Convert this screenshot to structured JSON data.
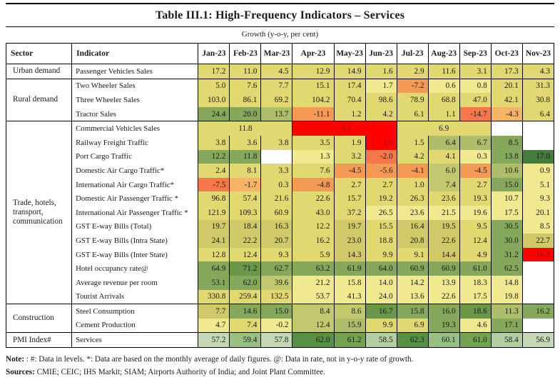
{
  "title": "Table III.1: High-Frequency Indicators – Services",
  "subtitle": "Growth (y-o-y, per cent)",
  "columns": [
    "Sector",
    "Indicator",
    "Jan-23",
    "Feb-23",
    "Mar-23",
    "Apr-23",
    "May-23",
    "Jun-23",
    "Jul-23",
    "Aug-23",
    "Sep-23",
    "Oct-23",
    "Nov-23"
  ],
  "palette": {
    "R": "#fe0100",
    "O3": "#f4784a",
    "O2": "#f59a55",
    "O1": "#f6b466",
    "Y0": "#f0e98f",
    "Y1": "#e2d871",
    "Y2": "#cfc96a",
    "YG": "#c2c86f",
    "G1": "#adbd69",
    "G2": "#85a85c",
    "G2d": "#6b9749",
    "G3": "#447c3c",
    "P0": "#c5d9b6",
    "P1": "#b3cfa2",
    "P2": "#98c083",
    "P3": "#74a152",
    "P4": "#569044",
    "W": "#ffffff",
    "border": "#000000",
    "value_text": "#1a1a1a",
    "text_on_red": "#9c0006"
  },
  "groups": [
    {
      "sector": "Urban demand",
      "rows": [
        {
          "indicator": "Passenger Vehicles Sales",
          "cells": [
            [
              "17.2",
              "Y1"
            ],
            [
              "11.0",
              "Y1"
            ],
            [
              "4.5",
              "Y1"
            ],
            [
              "12.9",
              "Y1"
            ],
            [
              "14.9",
              "Y1"
            ],
            [
              "1.6",
              "Y1"
            ],
            [
              "2.9",
              "Y1"
            ],
            [
              "11.6",
              "Y1"
            ],
            [
              "3.1",
              "Y1"
            ],
            [
              "17.3",
              "Y1"
            ],
            [
              "4.3",
              "Y1"
            ]
          ]
        }
      ]
    },
    {
      "sector": "Rural demand",
      "rows": [
        {
          "indicator": "Two Wheeler Sales",
          "cells": [
            [
              "5.0",
              "Y1"
            ],
            [
              "7.6",
              "Y1"
            ],
            [
              "7.7",
              "Y1"
            ],
            [
              "15.1",
              "Y1"
            ],
            [
              "17.4",
              "Y1"
            ],
            [
              "1.7",
              "Y0"
            ],
            [
              "-7.2",
              "O2"
            ],
            [
              "0.6",
              "Y0"
            ],
            [
              "0.8",
              "Y0"
            ],
            [
              "20.1",
              "Y1"
            ],
            [
              "31.3",
              "Y1"
            ]
          ]
        },
        {
          "indicator": "Three Wheeler Sales",
          "cells": [
            [
              "103.0",
              "Y1"
            ],
            [
              "86.1",
              "Y1"
            ],
            [
              "69.2",
              "Y1"
            ],
            [
              "104.2",
              "Y1"
            ],
            [
              "70.4",
              "Y1"
            ],
            [
              "98.6",
              "Y1"
            ],
            [
              "78.9",
              "Y1"
            ],
            [
              "68.8",
              "Y1"
            ],
            [
              "47.0",
              "Y1"
            ],
            [
              "42.1",
              "Y1"
            ],
            [
              "30.8",
              "Y1"
            ]
          ]
        },
        {
          "indicator": "Tractor Sales",
          "cells": [
            [
              "24.4",
              "G2"
            ],
            [
              "20.0",
              "G2"
            ],
            [
              "13.7",
              "G1"
            ],
            [
              "-11.1",
              "O2"
            ],
            [
              "1.2",
              "Y1"
            ],
            [
              "4.2",
              "Y1"
            ],
            [
              "6.1",
              "Y1"
            ],
            [
              "1.1",
              "Y1"
            ],
            [
              "-14.7",
              "O3"
            ],
            [
              "-4.3",
              "O1"
            ],
            [
              "6.4",
              "Y1"
            ]
          ]
        }
      ]
    },
    {
      "sector": "Trade, hotels, transport, communication",
      "rows": [
        {
          "indicator": "Commercial Vehicles Sales",
          "cells": [
            [
              "11.8",
              "Y1",
              3
            ],
            [
              "-3.3",
              "R",
              3
            ],
            [
              "6.9",
              "Y1",
              3
            ],
            [
              "",
              "W"
            ],
            [
              "",
              "W"
            ]
          ]
        },
        {
          "indicator": "Railway Freight Traffic",
          "cells": [
            [
              "3.8",
              "Y1"
            ],
            [
              "3.6",
              "Y1"
            ],
            [
              "3.8",
              "Y1"
            ],
            [
              "3.5",
              "Y1"
            ],
            [
              "1.9",
              "Y1"
            ],
            [
              "-1.9",
              "R"
            ],
            [
              "1.5",
              "Y1"
            ],
            [
              "6.4",
              "G1"
            ],
            [
              "6.7",
              "G1"
            ],
            [
              "8.5",
              "G2"
            ],
            [
              "",
              "W"
            ]
          ]
        },
        {
          "indicator": "Port Cargo Traffic",
          "cells": [
            [
              "12.2",
              "G2"
            ],
            [
              "11.8",
              "G2"
            ],
            [
              "",
              "W"
            ],
            [
              "1.3",
              "Y0"
            ],
            [
              "3.2",
              "Y1"
            ],
            [
              "-2.0",
              "O3"
            ],
            [
              "4.2",
              "Y1"
            ],
            [
              "4.1",
              "Y1"
            ],
            [
              "0.3",
              "Y0"
            ],
            [
              "13.8",
              "G2"
            ],
            [
              "17.0",
              "G3"
            ]
          ]
        },
        {
          "indicator": "Domestic Air Cargo Traffic*",
          "cells": [
            [
              "2.4",
              "Y1"
            ],
            [
              "8.1",
              "Y1"
            ],
            [
              "3.3",
              "Y1"
            ],
            [
              "7.6",
              "Y1"
            ],
            [
              "-4.5",
              "O2"
            ],
            [
              "-5.6",
              "O2"
            ],
            [
              "-4.1",
              "O2"
            ],
            [
              "6.0",
              "YG"
            ],
            [
              "-4.5",
              "O2"
            ],
            [
              "10.6",
              "G1"
            ],
            [
              "0.9",
              "Y0"
            ]
          ]
        },
        {
          "indicator": "International Air Cargo Traffic*",
          "cells": [
            [
              "-7.5",
              "O3"
            ],
            [
              "-1.7",
              "O1"
            ],
            [
              "0.3",
              "Y1"
            ],
            [
              "-4.8",
              "O2"
            ],
            [
              "2.7",
              "Y1"
            ],
            [
              "2.7",
              "Y1"
            ],
            [
              "1.0",
              "Y1"
            ],
            [
              "7.4",
              "YG"
            ],
            [
              "2.7",
              "Y1"
            ],
            [
              "15.0",
              "G2"
            ],
            [
              "5.1",
              "Y0"
            ]
          ]
        },
        {
          "indicator": "Domestic Air Passenger Traffic *",
          "cells": [
            [
              "96.8",
              "Y1"
            ],
            [
              "57.4",
              "Y1"
            ],
            [
              "21.6",
              "Y1"
            ],
            [
              "22.6",
              "Y1"
            ],
            [
              "15.7",
              "Y1"
            ],
            [
              "19.2",
              "Y1"
            ],
            [
              "26.3",
              "Y1"
            ],
            [
              "23.6",
              "Y1"
            ],
            [
              "19.3",
              "Y1"
            ],
            [
              "10.7",
              "Y0"
            ],
            [
              "9.3",
              "Y0"
            ]
          ]
        },
        {
          "indicator": "International Air Passenger Traffic *",
          "cells": [
            [
              "121.9",
              "Y1"
            ],
            [
              "109.3",
              "Y1"
            ],
            [
              "60.9",
              "Y1"
            ],
            [
              "43.0",
              "Y1"
            ],
            [
              "37.2",
              "Y1"
            ],
            [
              "26.5",
              "Y0"
            ],
            [
              "23.6",
              "Y0"
            ],
            [
              "21.5",
              "Y0"
            ],
            [
              "19.6",
              "Y0"
            ],
            [
              "17.5",
              "Y0"
            ],
            [
              "20.1",
              "Y0"
            ]
          ]
        },
        {
          "indicator": "GST E-way Bills (Total)",
          "cells": [
            [
              "19.7",
              "Y2"
            ],
            [
              "18.4",
              "Y2"
            ],
            [
              "16.3",
              "Y2"
            ],
            [
              "12.2",
              "Y1"
            ],
            [
              "19.7",
              "Y2"
            ],
            [
              "15.5",
              "Y1"
            ],
            [
              "16.4",
              "Y2"
            ],
            [
              "19.5",
              "Y2"
            ],
            [
              "9.5",
              "Y1"
            ],
            [
              "30.5",
              "G2"
            ],
            [
              "8.5",
              "Y0"
            ]
          ]
        },
        {
          "indicator": "GST E-way Bills (Intra State)",
          "cells": [
            [
              "24.1",
              "Y2"
            ],
            [
              "22.2",
              "Y2"
            ],
            [
              "20.7",
              "Y2"
            ],
            [
              "16.2",
              "Y1"
            ],
            [
              "23.0",
              "Y2"
            ],
            [
              "18.8",
              "Y1"
            ],
            [
              "20.8",
              "Y2"
            ],
            [
              "22.6",
              "Y2"
            ],
            [
              "12.4",
              "Y1"
            ],
            [
              "30.0",
              "G2"
            ],
            [
              "22.7",
              "Y2"
            ]
          ]
        },
        {
          "indicator": "GST E-way Bills (Inter State)",
          "cells": [
            [
              "12.8",
              "Y1"
            ],
            [
              "12.4",
              "Y1"
            ],
            [
              "9.3",
              "Y1"
            ],
            [
              "5.9",
              "Y1"
            ],
            [
              "14.3",
              "Y2"
            ],
            [
              "9.9",
              "Y1"
            ],
            [
              "9.1",
              "Y1"
            ],
            [
              "14.4",
              "Y2"
            ],
            [
              "4.9",
              "Y1"
            ],
            [
              "31.2",
              "G2"
            ],
            [
              "-16.2",
              "R"
            ]
          ]
        },
        {
          "indicator": "Hotel occupancy rate@",
          "cells": [
            [
              "64.9",
              "G2"
            ],
            [
              "71.2",
              "G2d"
            ],
            [
              "62.7",
              "G2"
            ],
            [
              "63.2",
              "G2"
            ],
            [
              "61.9",
              "G2"
            ],
            [
              "64.0",
              "G2"
            ],
            [
              "60.9",
              "G2"
            ],
            [
              "60.9",
              "G2"
            ],
            [
              "61.0",
              "G2"
            ],
            [
              "62.5",
              "G2"
            ],
            [
              "",
              "W"
            ]
          ]
        },
        {
          "indicator": "Average revenue per room",
          "cells": [
            [
              "53.1",
              "G2"
            ],
            [
              "62.0",
              "G2"
            ],
            [
              "39.6",
              "YG"
            ],
            [
              "21.2",
              "Y0"
            ],
            [
              "15.8",
              "Y0"
            ],
            [
              "14.0",
              "Y0"
            ],
            [
              "14.2",
              "Y0"
            ],
            [
              "13.9",
              "Y0"
            ],
            [
              "18.3",
              "Y0"
            ],
            [
              "14.8",
              "Y0"
            ],
            [
              "",
              "W"
            ]
          ]
        },
        {
          "indicator": "Tourist Arrivals",
          "cells": [
            [
              "330.8",
              "Y1"
            ],
            [
              "259.4",
              "Y1"
            ],
            [
              "132.5",
              "Y1"
            ],
            [
              "53.7",
              "Y0"
            ],
            [
              "41.3",
              "Y0"
            ],
            [
              "24.0",
              "Y0"
            ],
            [
              "13.6",
              "Y0"
            ],
            [
              "22.6",
              "Y0"
            ],
            [
              "17.5",
              "Y0"
            ],
            [
              "19.8",
              "Y0"
            ],
            [
              "",
              "W"
            ]
          ]
        }
      ]
    },
    {
      "sector": "Construction",
      "rows": [
        {
          "indicator": "Steel Consumption",
          "cells": [
            [
              "7.7",
              "Y2"
            ],
            [
              "14.6",
              "G2"
            ],
            [
              "15.0",
              "G2"
            ],
            [
              "8.4",
              "YG"
            ],
            [
              "8.6",
              "YG"
            ],
            [
              "16.7",
              "G2d"
            ],
            [
              "15.8",
              "G2"
            ],
            [
              "16.0",
              "G2"
            ],
            [
              "18.6",
              "G2d"
            ],
            [
              "11.3",
              "G1"
            ],
            [
              "16.2",
              "G2"
            ]
          ]
        },
        {
          "indicator": "Cement Production",
          "cells": [
            [
              "4.7",
              "Y0"
            ],
            [
              "7.4",
              "Y1"
            ],
            [
              "-0.2",
              "Y0"
            ],
            [
              "12.4",
              "YG"
            ],
            [
              "15.9",
              "G1"
            ],
            [
              "9.9",
              "Y1"
            ],
            [
              "6.9",
              "Y1"
            ],
            [
              "19.3",
              "G2"
            ],
            [
              "4.6",
              "Y0"
            ],
            [
              "17.1",
              "G2"
            ],
            [
              "",
              "W"
            ]
          ]
        }
      ]
    },
    {
      "sector": "PMI Index#",
      "rows": [
        {
          "indicator": "Services",
          "cells": [
            [
              "57.2",
              "P0"
            ],
            [
              "59.4",
              "P2"
            ],
            [
              "57.8",
              "P0"
            ],
            [
              "62.0",
              "P4"
            ],
            [
              "61.2",
              "P3"
            ],
            [
              "58.5",
              "P1"
            ],
            [
              "62.3",
              "P4"
            ],
            [
              "60.1",
              "P2"
            ],
            [
              "61.0",
              "P3"
            ],
            [
              "58.4",
              "P1"
            ],
            [
              "56.9",
              "P0"
            ]
          ]
        }
      ]
    }
  ],
  "notes": [
    {
      "label": "Note: ",
      "text": ": #: Data in levels. *: Data are based on the monthly average of daily figures. @: Data in rate, not in y-o-y rate of growth."
    },
    {
      "label": "Sources: ",
      "text": "CMIE; CEIC; IHS Markit; SIAM; Airports Authority of India; and Joint Plant Committee."
    }
  ]
}
